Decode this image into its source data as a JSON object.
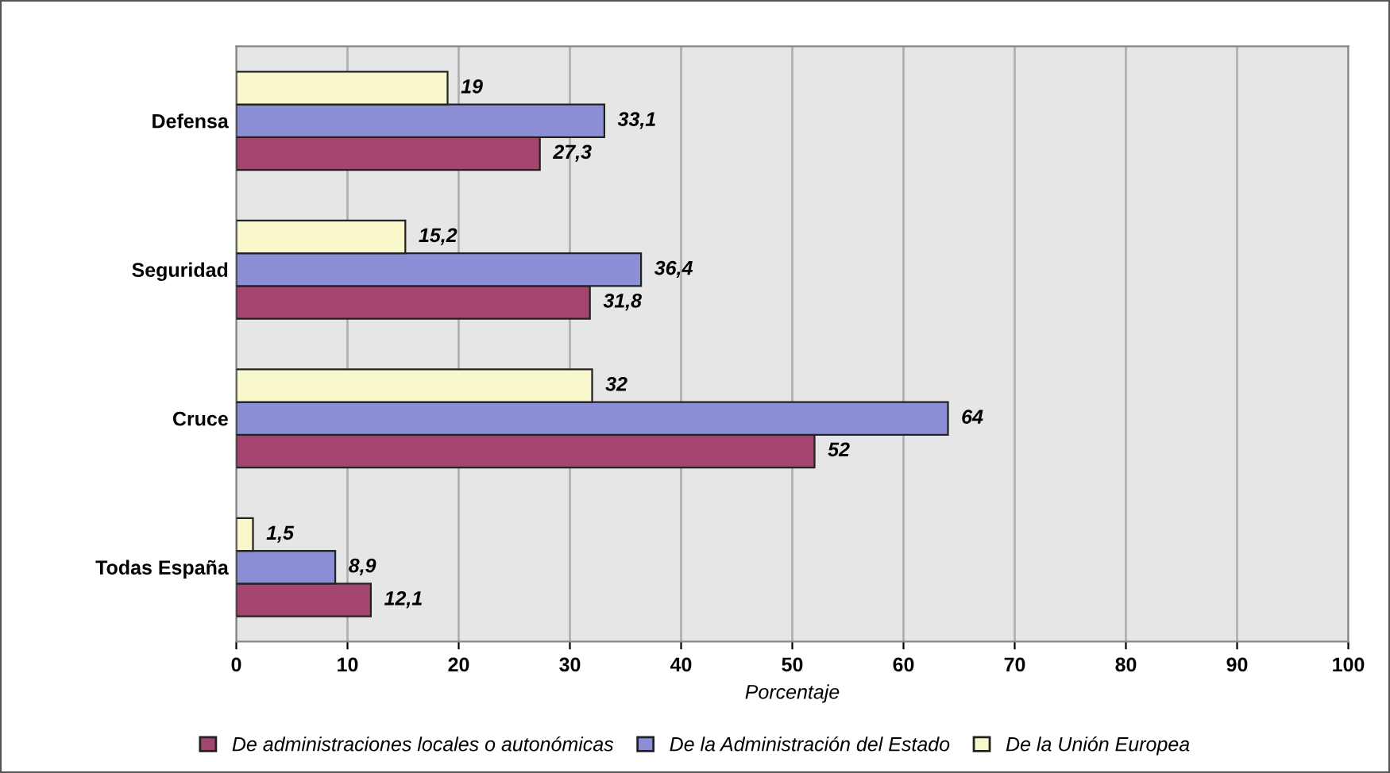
{
  "chart_data": {
    "type": "bar",
    "orientation": "horizontal",
    "xlabel": "Porcentaje",
    "categories": [
      "Defensa",
      "Seguridad",
      "Cruce",
      "Todas España"
    ],
    "series": [
      {
        "name": "De administraciones locales o autonómicas",
        "color": "#a3456e",
        "values": [
          27.3,
          31.8,
          52,
          12.1
        ],
        "value_labels": [
          "27,3",
          "31,8",
          "52",
          "12,1"
        ]
      },
      {
        "name": "De la Administración del Estado",
        "color": "#8c8fd6",
        "values": [
          33.1,
          36.4,
          64,
          8.9
        ],
        "value_labels": [
          "33,1",
          "36,4",
          "64",
          "8,9"
        ]
      },
      {
        "name": "De la Unión Europea",
        "color": "#f8f8cc",
        "values": [
          19,
          15.2,
          32,
          1.5
        ],
        "value_labels": [
          "19",
          "15,2",
          "32",
          "1,5"
        ]
      }
    ],
    "xlim": [
      0,
      100
    ],
    "xticks": [
      0,
      10,
      20,
      30,
      40,
      50,
      60,
      70,
      80,
      90,
      100
    ],
    "grid": "x",
    "legend": "bottom"
  }
}
